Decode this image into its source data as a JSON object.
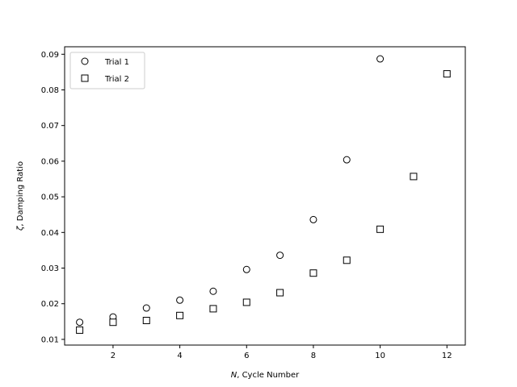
{
  "chart_data": {
    "type": "scatter",
    "xlabel": {
      "var": "N",
      "rest": ", Cycle Number"
    },
    "ylabel": {
      "var": "ζ",
      "rest": ", Damping Ratio"
    },
    "xlim": [
      0.55,
      12.55
    ],
    "ylim": [
      0.0084,
      0.0921
    ],
    "xticks": [
      2,
      4,
      6,
      8,
      10,
      12
    ],
    "xtick_labels": [
      "2",
      "4",
      "6",
      "8",
      "10",
      "12"
    ],
    "yticks": [
      0.01,
      0.02,
      0.03,
      0.04,
      0.05,
      0.06,
      0.07,
      0.08,
      0.09
    ],
    "ytick_labels": [
      "0.01",
      "0.02",
      "0.03",
      "0.04",
      "0.05",
      "0.06",
      "0.07",
      "0.08",
      "0.09"
    ],
    "grid": false,
    "legend_position": "top-left",
    "series": [
      {
        "name": "Trial 1",
        "marker": "circle",
        "x": [
          1,
          2,
          3,
          4,
          5,
          6,
          7,
          8,
          9,
          10
        ],
        "y": [
          0.0148,
          0.0163,
          0.0188,
          0.021,
          0.0235,
          0.0296,
          0.0336,
          0.0436,
          0.0604,
          0.0887
        ]
      },
      {
        "name": "Trial 2",
        "marker": "square",
        "x": [
          1,
          2,
          3,
          4,
          5,
          6,
          7,
          8,
          9,
          10,
          11,
          12
        ],
        "y": [
          0.0126,
          0.0148,
          0.0153,
          0.0167,
          0.0186,
          0.0204,
          0.0231,
          0.0286,
          0.0322,
          0.0409,
          0.0557,
          0.0845
        ]
      }
    ]
  }
}
